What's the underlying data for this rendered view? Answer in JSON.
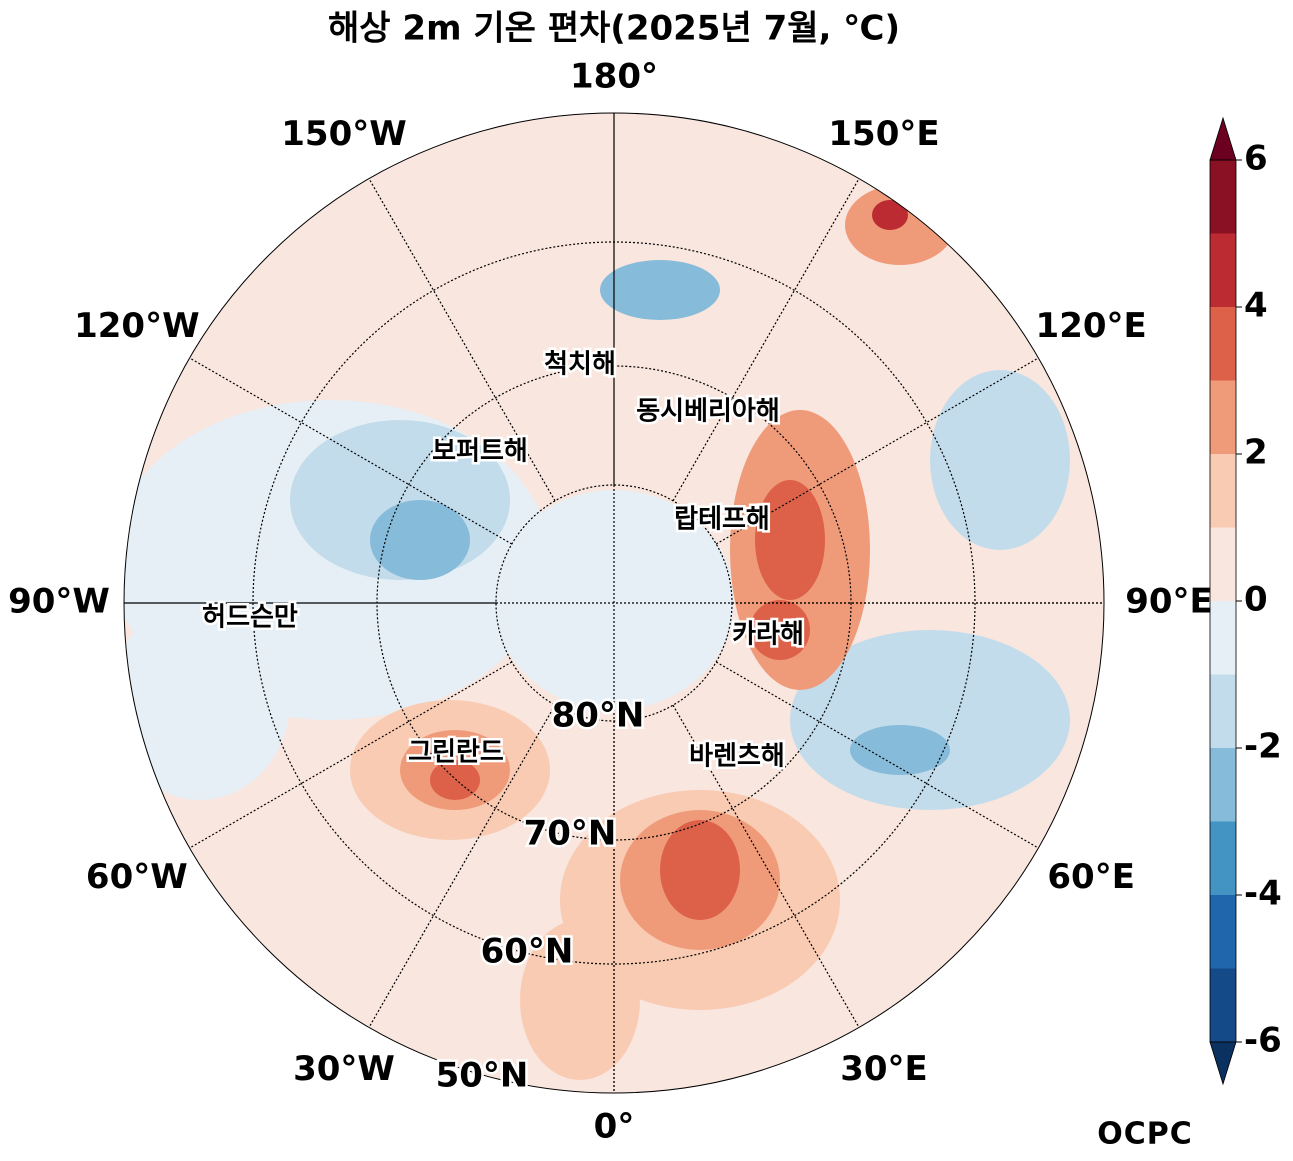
{
  "title": "해상 2m 기온 편차(2025년 7월, ℃)",
  "longitude_labels": [
    "0°",
    "30°E",
    "60°E",
    "90°E",
    "120°E",
    "150°E",
    "180°",
    "150°W",
    "120°W",
    "90°W",
    "60°W",
    "30°W"
  ],
  "latitude_labels": [
    "80°N",
    "70°N",
    "60°N",
    "50°N"
  ],
  "region_labels": [
    "척치해",
    "동시베리아해",
    "보퍼트해",
    "랍테프해",
    "카라해",
    "허드슨만",
    "그린란드",
    "바렌츠해"
  ],
  "colorbar": {
    "levels": [
      -6,
      -5,
      -4,
      -3,
      -2,
      -1,
      0,
      1,
      2,
      3,
      4,
      5,
      6
    ],
    "colors": [
      "#154a88",
      "#2066ac",
      "#4393c3",
      "#86bbda",
      "#c2dceb",
      "#e6eff5",
      "#f8e6df",
      "#f9cbb2",
      "#ef9b7a",
      "#dd6149",
      "#bd2b32",
      "#8a1024"
    ],
    "extend_colors": [
      "#0b3161",
      "#6b0020"
    ],
    "ticks": [
      -6,
      -4,
      -2,
      0,
      2,
      4,
      6
    ]
  },
  "logo": "OCPC"
}
